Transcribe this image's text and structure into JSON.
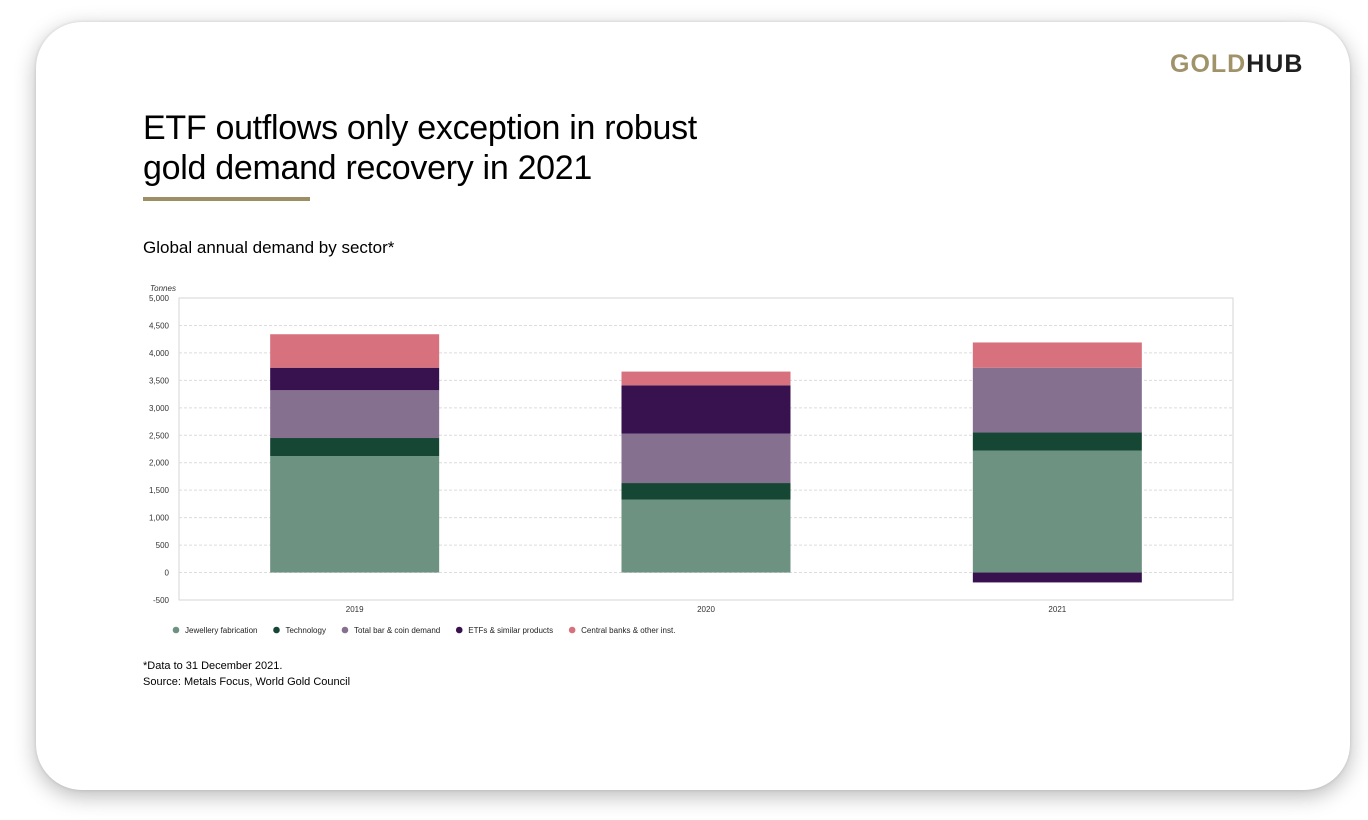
{
  "brand": {
    "part1": "GOLD",
    "part2": "HUB",
    "color_gold": "#a0936a",
    "color_dark": "#1f1f1f"
  },
  "header": {
    "title_line1": "ETF outflows only exception in robust",
    "title_line2": "gold demand recovery in 2021",
    "accent_color": "#9c8f64"
  },
  "chart_data": {
    "type": "bar",
    "stacked": true,
    "title": "Global annual demand by sector*",
    "ylabel": "Tonnes",
    "xlabel": "",
    "ylim": [
      -500,
      5000
    ],
    "yticks": [
      -500,
      0,
      500,
      1000,
      1500,
      2000,
      2500,
      3000,
      3500,
      4000,
      4500,
      5000
    ],
    "grid": true,
    "legend_position": "bottom-left",
    "categories": [
      "2019",
      "2020",
      "2021"
    ],
    "series": [
      {
        "name": "Jewellery fabrication",
        "color": "#6e9282",
        "values": [
          2120,
          1330,
          2220
        ]
      },
      {
        "name": "Technology",
        "color": "#154734",
        "values": [
          330,
          300,
          330
        ]
      },
      {
        "name": "Total bar & coin demand",
        "color": "#86708f",
        "values": [
          870,
          900,
          1180
        ]
      },
      {
        "name": "ETFs & similar products",
        "color": "#37124f",
        "values": [
          410,
          880,
          -180
        ]
      },
      {
        "name": "Central banks & other inst.",
        "color": "#d7717d",
        "values": [
          610,
          250,
          460
        ]
      }
    ]
  },
  "footer": {
    "note": "*Data to 31 December 2021.",
    "source": "Source: Metals Focus, World Gold Council"
  }
}
